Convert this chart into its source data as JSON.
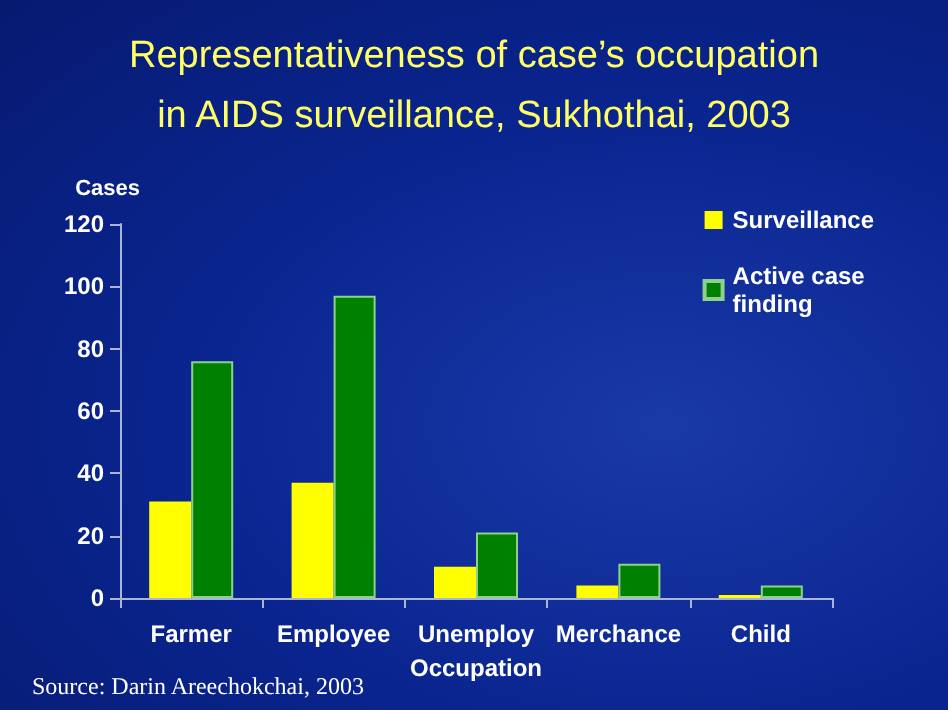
{
  "chart_data": {
    "type": "bar",
    "title": "Representativeness of case’s occupation\nin AIDS surveillance, Sukhothai, 2003",
    "ylabel": "Cases",
    "xlabel": "Occupation",
    "categories": [
      "Farmer",
      "Employee",
      "Unemploy",
      "Merchance",
      "Child"
    ],
    "series": [
      {
        "name": "Surveillance",
        "color": "#ffff00",
        "values": [
          31,
          37,
          10,
          4,
          1
        ]
      },
      {
        "name": "Active case\nfinding",
        "color": "#008000",
        "values": [
          76,
          97,
          21,
          11,
          4
        ]
      }
    ],
    "ylim": [
      0,
      120
    ],
    "yticks": [
      0,
      20,
      40,
      60,
      80,
      100,
      120
    ],
    "grid": false,
    "legend": "top right",
    "annotations": [
      "Source: Darin Areechokchai, 2003"
    ]
  }
}
